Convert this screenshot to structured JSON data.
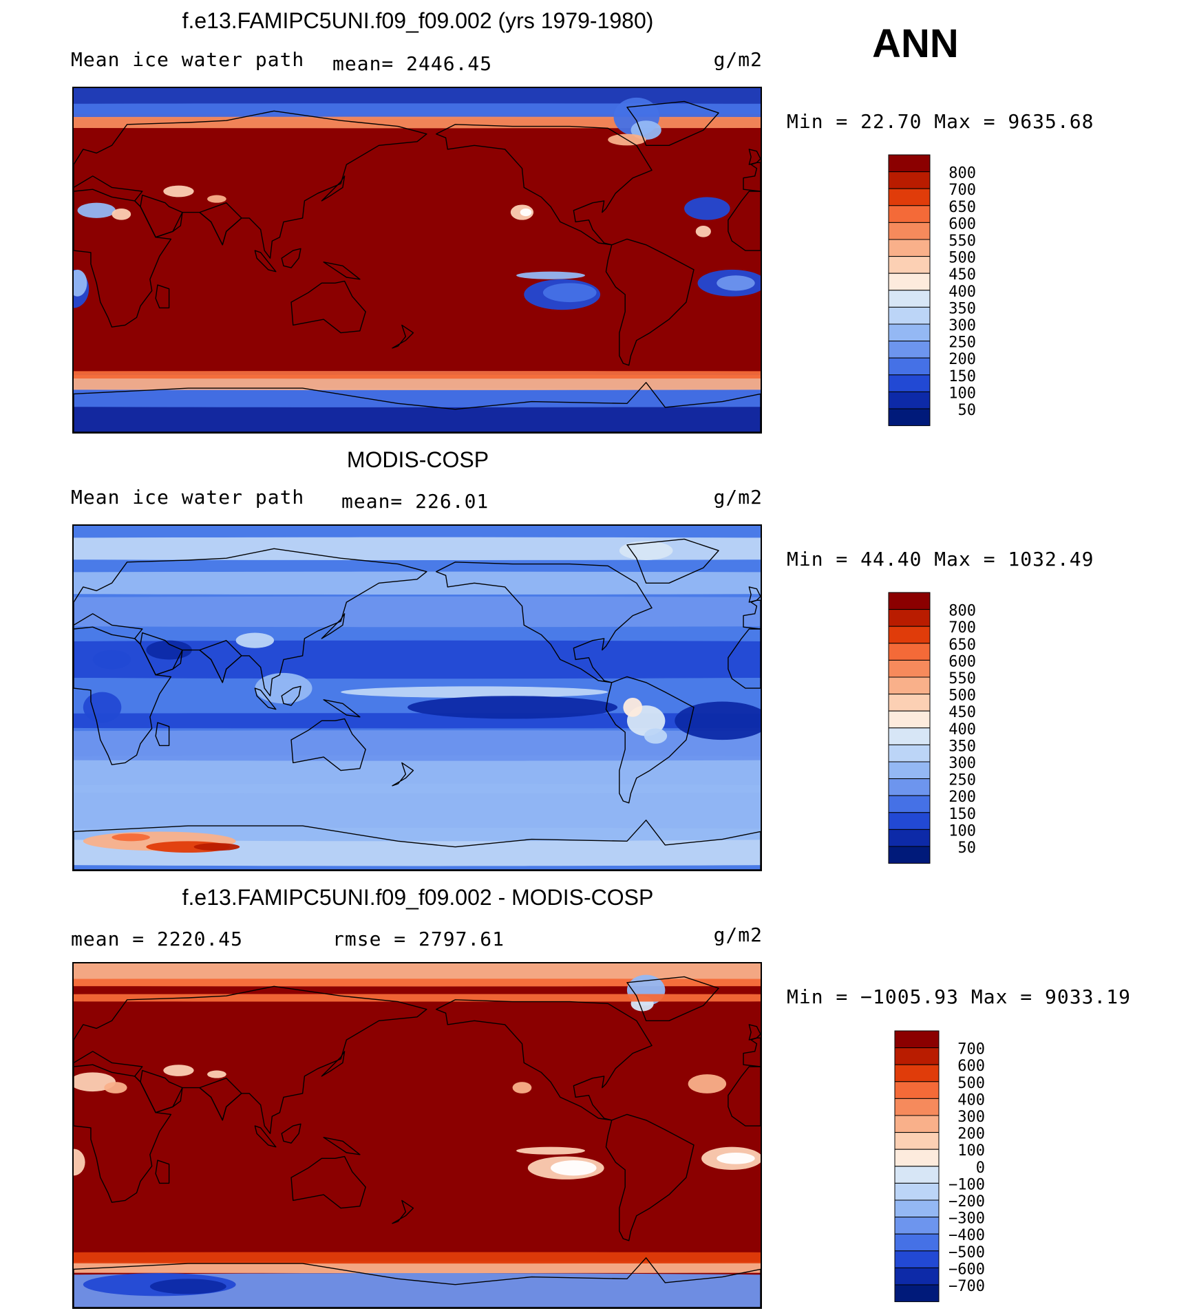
{
  "season": "ANN",
  "panels": [
    {
      "id": "model",
      "title": "f.e13.FAMIPC5UNI.f09_f09.002 (yrs 1979-1980)",
      "left_label": "Mean ice water path",
      "center_label": "mean= 2446.45",
      "units": "g/m2",
      "minmax": "Min =   22.70 Max = 9635.68",
      "scheme": "abs",
      "field": "model",
      "colorbar": {
        "levels": [
          "800",
          "700",
          "650",
          "600",
          "550",
          "500",
          "450",
          "400",
          "350",
          "300",
          "250",
          "200",
          "150",
          "100",
          "50"
        ],
        "colors": [
          "#8b0000",
          "#b91c00",
          "#e03c0a",
          "#f46a38",
          "#f68a5c",
          "#f9b08a",
          "#fcd0b4",
          "#fdebdd",
          "#d7e6f6",
          "#bcd5f7",
          "#94b8f4",
          "#6d95ee",
          "#4571e6",
          "#2249d4",
          "#0d2aa8",
          "#001a7a"
        ]
      }
    },
    {
      "id": "obs",
      "title": "MODIS-COSP",
      "left_label": "Mean ice water path",
      "center_label": "mean= 226.01",
      "units": "g/m2",
      "minmax": "Min =   44.40 Max = 1032.49",
      "scheme": "abs",
      "field": "obs",
      "colorbar": {
        "levels": [
          "800",
          "700",
          "650",
          "600",
          "550",
          "500",
          "450",
          "400",
          "350",
          "300",
          "250",
          "200",
          "150",
          "100",
          "50"
        ],
        "colors": [
          "#8b0000",
          "#b91c00",
          "#e03c0a",
          "#f46a38",
          "#f68a5c",
          "#f9b08a",
          "#fcd0b4",
          "#fdebdd",
          "#d7e6f6",
          "#bcd5f7",
          "#94b8f4",
          "#6d95ee",
          "#4571e6",
          "#2249d4",
          "#0d2aa8",
          "#001a7a"
        ]
      }
    },
    {
      "id": "diff",
      "title": "f.e13.FAMIPC5UNI.f09_f09.002 - MODIS-COSP",
      "left_label": "mean = 2220.45",
      "center_label": "rmse = 2797.61",
      "units": "g/m2",
      "minmax": "Min = −1005.93 Max = 9033.19",
      "scheme": "diff",
      "field": "diff",
      "colorbar": {
        "levels": [
          "700",
          "600",
          "500",
          "400",
          "300",
          "200",
          "100",
          "0",
          "−100",
          "−200",
          "−300",
          "−400",
          "−500",
          "−600",
          "−700"
        ],
        "colors": [
          "#8b0000",
          "#b91c00",
          "#e03c0a",
          "#f46a38",
          "#f68a5c",
          "#f9b08a",
          "#fcd0b4",
          "#fdebdd",
          "#d7e6f6",
          "#bcd5f7",
          "#94b8f4",
          "#6d95ee",
          "#4571e6",
          "#2249d4",
          "#0d2aa8",
          "#001a7a"
        ]
      }
    }
  ],
  "chart_data": [
    {
      "type": "heatmap",
      "title": "f.e13.FAMIPC5UNI.f09_f09.002 (yrs 1979-1980)",
      "subtitle": "Mean ice water path",
      "units": "g/m2",
      "mean": 2446.45,
      "min": 22.7,
      "max": 9635.68,
      "contour_levels": [
        50,
        100,
        150,
        200,
        250,
        300,
        350,
        400,
        450,
        500,
        550,
        600,
        650,
        700,
        800
      ]
    },
    {
      "type": "heatmap",
      "title": "MODIS-COSP",
      "subtitle": "Mean ice water path",
      "units": "g/m2",
      "mean": 226.01,
      "min": 44.4,
      "max": 1032.49,
      "contour_levels": [
        50,
        100,
        150,
        200,
        250,
        300,
        350,
        400,
        450,
        500,
        550,
        600,
        650,
        700,
        800
      ]
    },
    {
      "type": "heatmap",
      "title": "f.e13.FAMIPC5UNI.f09_f09.002 - MODIS-COSP",
      "units": "g/m2",
      "mean": 2220.45,
      "rmse": 2797.61,
      "min": -1005.93,
      "max": 9033.19,
      "contour_levels": [
        -700,
        -600,
        -500,
        -400,
        -300,
        -200,
        -100,
        0,
        100,
        200,
        300,
        400,
        500,
        600,
        700
      ]
    }
  ]
}
